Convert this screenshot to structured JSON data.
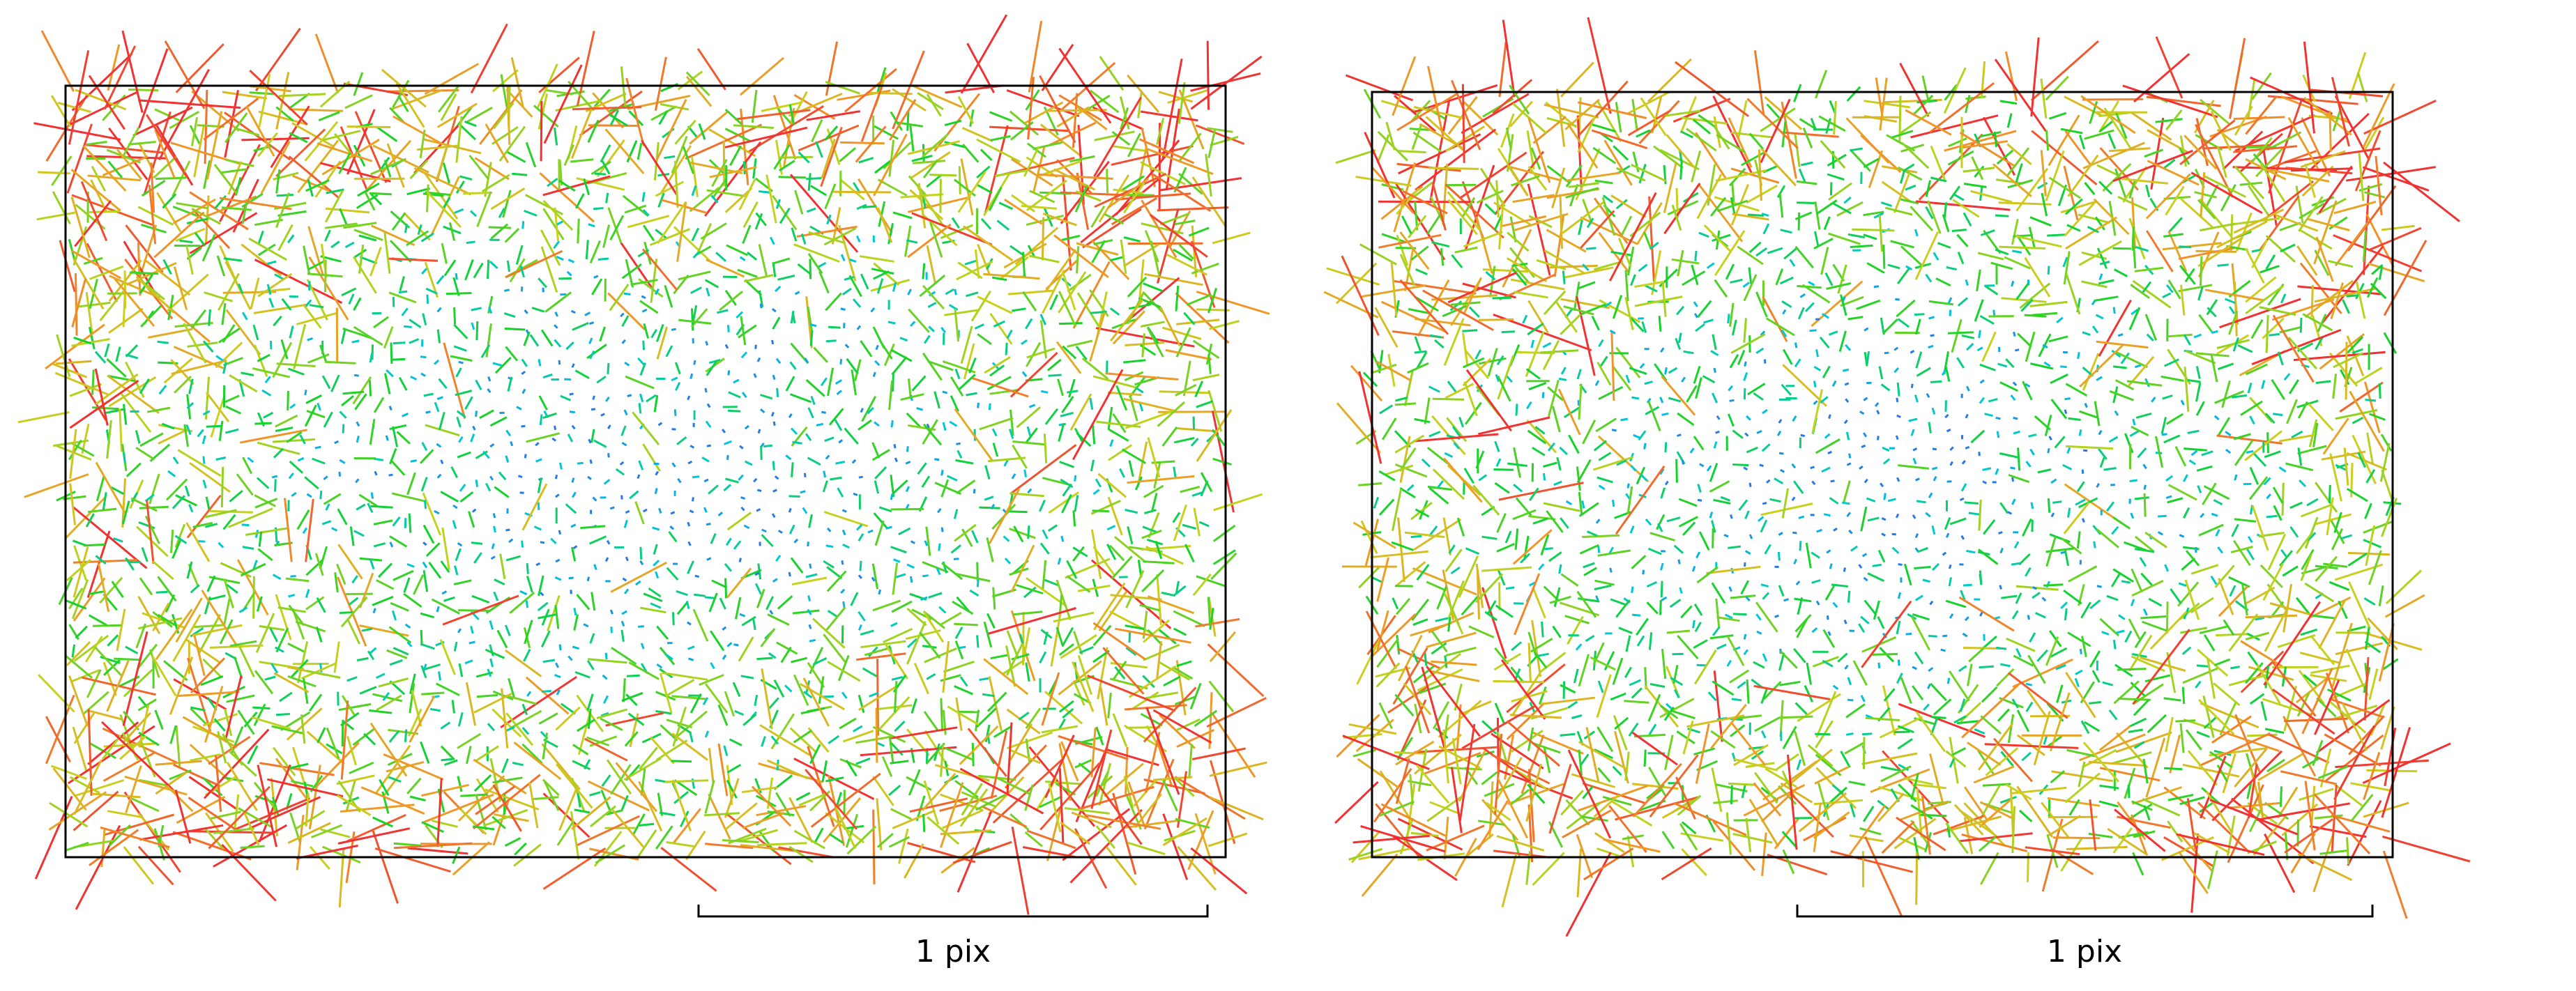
{
  "panels": [
    {
      "scale_label": "1 pix"
    },
    {
      "scale_label": "1 pix"
    }
  ]
}
